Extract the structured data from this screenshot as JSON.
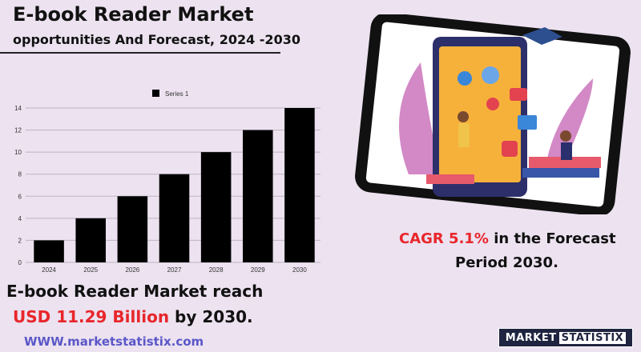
{
  "header": {
    "title": "E-book Reader Market",
    "subtitle": "opportunities And Forecast, 2024 -2030"
  },
  "chart_data": {
    "type": "bar",
    "categories": [
      "2024",
      "2025",
      "2026",
      "2027",
      "2028",
      "2029",
      "2030"
    ],
    "series": [
      {
        "name": "Series 1",
        "values": [
          2,
          4,
          6,
          8,
          10,
          12,
          14
        ]
      }
    ],
    "ylim": [
      0,
      14
    ],
    "yticks": [
      0,
      2,
      4,
      6,
      8,
      10,
      12,
      14
    ],
    "grid": true,
    "legend_position": "top",
    "bar_color": "#000000"
  },
  "market": {
    "line1": "E-book Reader Market reach",
    "value": "USD 11.29 Billion",
    "suffix": "by 2030."
  },
  "cagr": {
    "value": "CAGR 5.1%",
    "line1_rest": "in the  Forecast",
    "line2": "Period  2030."
  },
  "website": "WWW.marketstatistix.com",
  "logo": {
    "part1": "MARKET",
    "part2": "STATISTIX"
  },
  "colors": {
    "background": "#ece2f0",
    "accent_red": "#e8262b",
    "link": "#5b57c8",
    "logo_bg": "#1f2440"
  }
}
